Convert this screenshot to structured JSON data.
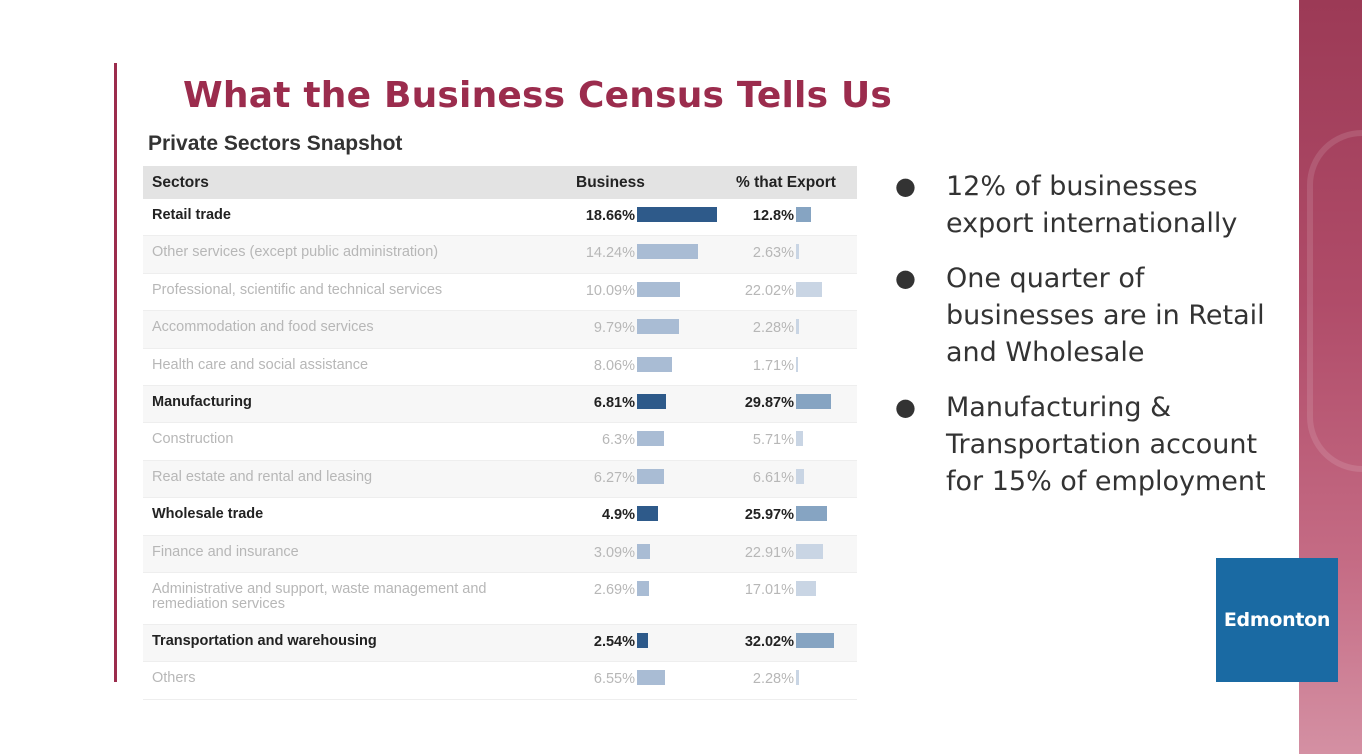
{
  "slide": {
    "title": "What the Business Census Tells Us",
    "subtitle": "Private Sectors Snapshot"
  },
  "table": {
    "headers": {
      "sectors": "Sectors",
      "business": "Business",
      "export": "% that Export"
    },
    "rows": [
      {
        "sector": "Retail trade",
        "business": "18.66%",
        "business_value": 18.66,
        "export": "12.8%",
        "export_value": 12.8,
        "highlight": true
      },
      {
        "sector": "Other services (except public administration)",
        "business": "14.24%",
        "business_value": 14.24,
        "export": "2.63%",
        "export_value": 2.63,
        "highlight": false
      },
      {
        "sector": "Professional, scientific and technical services",
        "business": "10.09%",
        "business_value": 10.09,
        "export": "22.02%",
        "export_value": 22.02,
        "highlight": false
      },
      {
        "sector": "Accommodation and food services",
        "business": "9.79%",
        "business_value": 9.79,
        "export": "2.28%",
        "export_value": 2.28,
        "highlight": false
      },
      {
        "sector": "Health care and social assistance",
        "business": "8.06%",
        "business_value": 8.06,
        "export": "1.71%",
        "export_value": 1.71,
        "highlight": false
      },
      {
        "sector": "Manufacturing",
        "business": "6.81%",
        "business_value": 6.81,
        "export": "29.87%",
        "export_value": 29.87,
        "highlight": true
      },
      {
        "sector": "Construction",
        "business": "6.3%",
        "business_value": 6.3,
        "export": "5.71%",
        "export_value": 5.71,
        "highlight": false
      },
      {
        "sector": "Real estate and rental and leasing",
        "business": "6.27%",
        "business_value": 6.27,
        "export": "6.61%",
        "export_value": 6.61,
        "highlight": false
      },
      {
        "sector": "Wholesale trade",
        "business": "4.9%",
        "business_value": 4.9,
        "export": "25.97%",
        "export_value": 25.97,
        "highlight": true
      },
      {
        "sector": "Finance and insurance",
        "business": "3.09%",
        "business_value": 3.09,
        "export": "22.91%",
        "export_value": 22.91,
        "highlight": false
      },
      {
        "sector": "Administrative and support, waste management and remediation services",
        "business": "2.69%",
        "business_value": 2.69,
        "export": "17.01%",
        "export_value": 17.01,
        "highlight": false
      },
      {
        "sector": "Transportation and warehousing",
        "business": "2.54%",
        "business_value": 2.54,
        "export": "32.02%",
        "export_value": 32.02,
        "highlight": true
      },
      {
        "sector": "Others",
        "business": "6.55%",
        "business_value": 6.55,
        "export": "2.28%",
        "export_value": 2.28,
        "highlight": false
      }
    ]
  },
  "bullets": [
    "12% of businesses export internationally",
    "One quarter of businesses are in Retail and Wholesale",
    "Manufacturing & Transportation account for 15% of employment"
  ],
  "logo": {
    "text": "Edmonton"
  },
  "colors": {
    "title": "#9b2c4d",
    "bar_highlight": "#2e5a8a",
    "bar_muted": "#a9bcd4",
    "logo_bg": "#1a6aa3"
  }
}
